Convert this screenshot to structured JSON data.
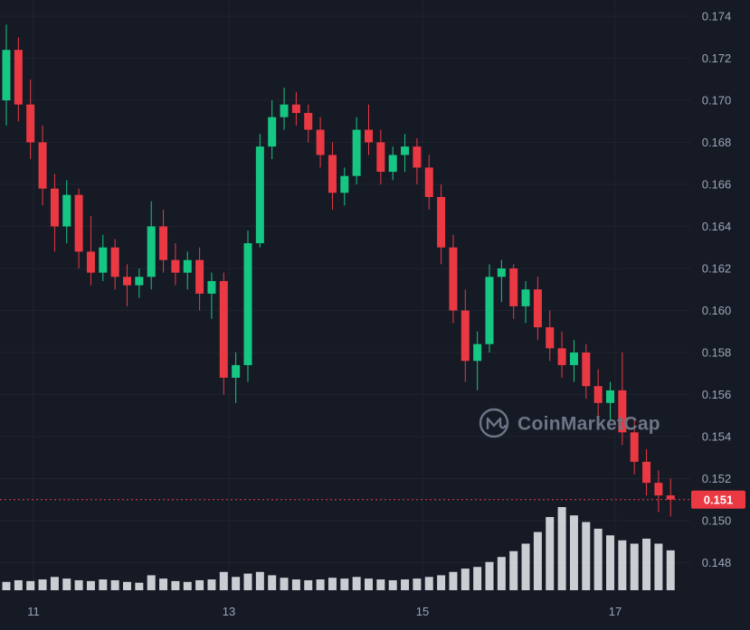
{
  "app": {
    "watermark_text": "CoinMarketCap"
  },
  "colors": {
    "background": "#161A25",
    "grid": "#20242F",
    "axis_text": "#9DA4B8",
    "up": "#16C784",
    "down": "#EA3943",
    "volume_bar": "#E4E6EA",
    "watermark": "#6E7586",
    "current_price_badge_bg": "#EA3943",
    "current_price_badge_text": "#FFFFFF"
  },
  "chart_data": {
    "type": "candlestick",
    "title": "",
    "xlabel": "",
    "ylabel": "",
    "legend": "none",
    "grid": "on",
    "price_axis_labels": [
      "0.174",
      "0.172",
      "0.170",
      "0.168",
      "0.166",
      "0.164",
      "0.162",
      "0.160",
      "0.158",
      "0.156",
      "0.154",
      "0.152",
      "0.150",
      "0.148"
    ],
    "price_axis_range": [
      0.148,
      0.174
    ],
    "price_step": 0.002,
    "time_axis_labels": [
      {
        "label": "11",
        "candle_index": 2.25
      },
      {
        "label": "13",
        "candle_index": 18.43
      },
      {
        "label": "15",
        "candle_index": 34.46
      },
      {
        "label": "17",
        "candle_index": 50.41
      }
    ],
    "current_price": {
      "label": "0.151",
      "value": 0.151
    },
    "candles_format": [
      "open",
      "high",
      "low",
      "close"
    ],
    "candles": [
      [
        0.17,
        0.1736,
        0.1688,
        0.1724
      ],
      [
        0.1724,
        0.173,
        0.169,
        0.1698
      ],
      [
        0.1698,
        0.171,
        0.1672,
        0.168
      ],
      [
        0.168,
        0.1688,
        0.165,
        0.1658
      ],
      [
        0.1658,
        0.1665,
        0.1628,
        0.164
      ],
      [
        0.164,
        0.1662,
        0.1632,
        0.1655
      ],
      [
        0.1655,
        0.1658,
        0.162,
        0.1628
      ],
      [
        0.1628,
        0.1645,
        0.1612,
        0.1618
      ],
      [
        0.1618,
        0.1636,
        0.1614,
        0.163
      ],
      [
        0.163,
        0.1634,
        0.161,
        0.1616
      ],
      [
        0.1616,
        0.1622,
        0.1602,
        0.1612
      ],
      [
        0.1612,
        0.162,
        0.1606,
        0.1616
      ],
      [
        0.1616,
        0.1652,
        0.161,
        0.164
      ],
      [
        0.164,
        0.1648,
        0.1618,
        0.1624
      ],
      [
        0.1624,
        0.1632,
        0.1612,
        0.1618
      ],
      [
        0.1618,
        0.1628,
        0.161,
        0.1624
      ],
      [
        0.1624,
        0.163,
        0.16,
        0.1608
      ],
      [
        0.1608,
        0.1618,
        0.1596,
        0.1614
      ],
      [
        0.1614,
        0.1618,
        0.156,
        0.1568
      ],
      [
        0.1568,
        0.158,
        0.1556,
        0.1574
      ],
      [
        0.1574,
        0.1638,
        0.1566,
        0.1632
      ],
      [
        0.1632,
        0.1684,
        0.163,
        0.1678
      ],
      [
        0.1678,
        0.17,
        0.1672,
        0.1692
      ],
      [
        0.1692,
        0.1706,
        0.1686,
        0.1698
      ],
      [
        0.1698,
        0.1704,
        0.1688,
        0.1694
      ],
      [
        0.1694,
        0.1698,
        0.168,
        0.1686
      ],
      [
        0.1686,
        0.1692,
        0.1668,
        0.1674
      ],
      [
        0.1674,
        0.168,
        0.1648,
        0.1656
      ],
      [
        0.1656,
        0.1668,
        0.165,
        0.1664
      ],
      [
        0.1664,
        0.1692,
        0.166,
        0.1686
      ],
      [
        0.1686,
        0.1698,
        0.1674,
        0.168
      ],
      [
        0.168,
        0.1686,
        0.166,
        0.1666
      ],
      [
        0.1666,
        0.1678,
        0.1662,
        0.1674
      ],
      [
        0.1674,
        0.1684,
        0.1666,
        0.1678
      ],
      [
        0.1678,
        0.1682,
        0.166,
        0.1668
      ],
      [
        0.1668,
        0.1674,
        0.1648,
        0.1654
      ],
      [
        0.1654,
        0.166,
        0.1622,
        0.163
      ],
      [
        0.163,
        0.1636,
        0.1594,
        0.16
      ],
      [
        0.16,
        0.161,
        0.1566,
        0.1576
      ],
      [
        0.1576,
        0.159,
        0.1562,
        0.1584
      ],
      [
        0.1584,
        0.1622,
        0.158,
        0.1616
      ],
      [
        0.1616,
        0.1624,
        0.1604,
        0.162
      ],
      [
        0.162,
        0.1622,
        0.1596,
        0.1602
      ],
      [
        0.1602,
        0.1614,
        0.1594,
        0.161
      ],
      [
        0.161,
        0.1616,
        0.1586,
        0.1592
      ],
      [
        0.1592,
        0.16,
        0.1576,
        0.1582
      ],
      [
        0.1582,
        0.159,
        0.1568,
        0.1574
      ],
      [
        0.1574,
        0.1586,
        0.1566,
        0.158
      ],
      [
        0.158,
        0.1584,
        0.1558,
        0.1564
      ],
      [
        0.1564,
        0.1572,
        0.155,
        0.1556
      ],
      [
        0.1556,
        0.1566,
        0.1548,
        0.1562
      ],
      [
        0.1562,
        0.158,
        0.1536,
        0.1542
      ],
      [
        0.1542,
        0.1548,
        0.1522,
        0.1528
      ],
      [
        0.1528,
        0.1534,
        0.1512,
        0.1518
      ],
      [
        0.1518,
        0.1524,
        0.1504,
        0.1512
      ],
      [
        0.1512,
        0.152,
        0.1502,
        0.151
      ]
    ],
    "volume_relative": [
      10,
      12,
      11,
      13,
      16,
      14,
      12,
      11,
      13,
      12,
      10,
      9,
      18,
      14,
      11,
      10,
      12,
      13,
      22,
      16,
      20,
      22,
      18,
      15,
      13,
      12,
      13,
      15,
      14,
      16,
      14,
      13,
      12,
      13,
      14,
      16,
      18,
      22,
      26,
      28,
      34,
      40,
      47,
      56,
      70,
      88,
      100,
      90,
      82,
      74,
      66,
      60,
      56,
      62,
      56,
      48
    ]
  }
}
